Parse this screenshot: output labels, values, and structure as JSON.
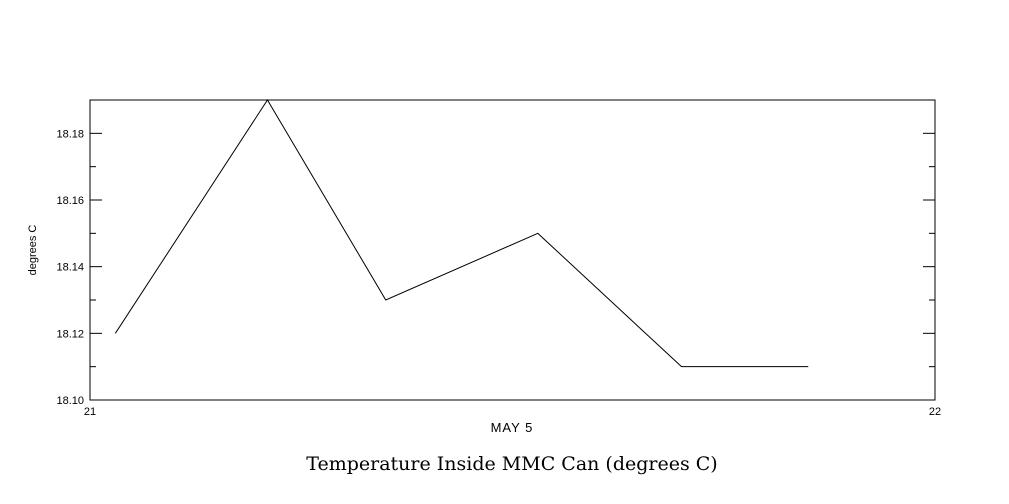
{
  "chart_data": {
    "type": "line",
    "title": "Temperature Inside MMC Can (degrees C)",
    "xlabel": "MAY  5",
    "ylabel": "degrees C",
    "xlim": [
      21,
      22
    ],
    "ylim": [
      18.1,
      18.19
    ],
    "x": [
      21.03,
      21.21,
      21.35,
      21.53,
      21.7,
      21.85
    ],
    "y": [
      18.12,
      18.19,
      18.13,
      18.15,
      18.11,
      18.11
    ],
    "xticks": [
      21,
      22
    ],
    "xtick_labels": [
      "21",
      "22"
    ],
    "yticks_major": [
      18.1,
      18.12,
      18.14,
      18.16,
      18.18
    ],
    "ytick_labels": [
      "18.10",
      "18.12",
      "18.14",
      "18.16",
      "18.18"
    ],
    "yticks_minor": [
      18.11,
      18.13,
      18.15,
      18.17
    ],
    "grid": false,
    "legend": null,
    "line_color": "#000000",
    "background_color": "#ffffff"
  }
}
